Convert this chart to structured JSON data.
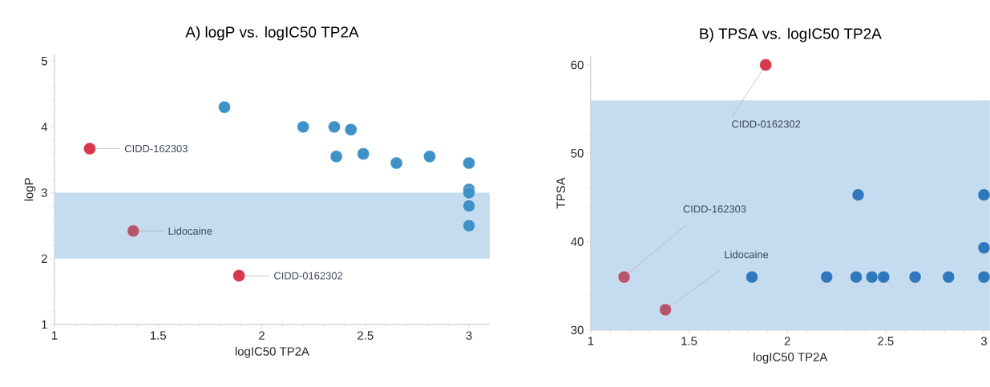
{
  "chart_data": [
    {
      "type": "scatter",
      "title": "A) logP vs. logIC50 TP2A",
      "xlabel": "logIC50 TP2A",
      "ylabel": "logP",
      "xlim": [
        1,
        3.1
      ],
      "ylim": [
        1,
        5.1
      ],
      "xticks": [
        1,
        1.5,
        2,
        2.5,
        3
      ],
      "yticks": [
        1,
        2,
        3,
        4,
        5
      ],
      "marker": "circle",
      "bands": [
        {
          "axis": "y",
          "from": 2,
          "to": 3,
          "color": "#c5dcf0"
        }
      ],
      "series": [
        {
          "color": "#3f92c8",
          "x": [
            1.82,
            2.2,
            2.35,
            2.43,
            2.36,
            2.49,
            2.65,
            2.81,
            3.0,
            3.0,
            3.0,
            3.0,
            3.0
          ],
          "values": [
            4.3,
            4.0,
            4.0,
            3.96,
            3.55,
            3.59,
            3.45,
            3.55,
            3.45,
            3.05,
            3.0,
            2.8,
            2.5
          ]
        },
        {
          "color": "#d8394a",
          "x": [
            1.17,
            1.89
          ],
          "values": [
            3.67,
            1.74
          ]
        },
        {
          "color": "#b5566f",
          "x": [
            1.38
          ],
          "values": [
            2.42
          ]
        }
      ],
      "annotations": [
        {
          "text": "CIDD-162303",
          "x": 1.17,
          "y": 3.67
        },
        {
          "text": "Lidocaine",
          "x": 1.38,
          "y": 2.42
        },
        {
          "text": "CIDD-0162302",
          "x": 1.89,
          "y": 1.74
        }
      ]
    },
    {
      "type": "scatter",
      "title": "B) TPSA vs. logIC50 TP2A",
      "xlabel": "logIC50 TP2A",
      "ylabel": "TPSA",
      "xlim": [
        1,
        3.03
      ],
      "ylim": [
        30,
        61
      ],
      "xticks": [
        1,
        1.5,
        2,
        2.5,
        3
      ],
      "yticks": [
        30,
        40,
        50,
        60
      ],
      "marker": "circle",
      "bands": [
        {
          "axis": "y",
          "from": 30,
          "to": 56,
          "color": "#c5dcf0"
        }
      ],
      "series": [
        {
          "color": "#2f78be",
          "x": [
            1.82,
            2.2,
            2.35,
            2.43,
            2.49,
            2.65,
            2.82,
            3.0,
            2.36,
            3.0,
            3.0
          ],
          "values": [
            36,
            36,
            36,
            36,
            36,
            36,
            36,
            36,
            45.3,
            45.3,
            39.3
          ]
        },
        {
          "color": "#d8394a",
          "x": [
            1.89
          ],
          "values": [
            60
          ]
        },
        {
          "color": "#b5566f",
          "x": [
            1.17,
            1.38
          ],
          "values": [
            36,
            32.3
          ]
        }
      ],
      "annotations": [
        {
          "text": "CIDD-0162302",
          "x": 1.89,
          "y": 60
        },
        {
          "text": "CIDD-162303",
          "x": 1.17,
          "y": 36
        },
        {
          "text": "Lidocaine",
          "x": 1.38,
          "y": 32.3
        }
      ]
    }
  ]
}
